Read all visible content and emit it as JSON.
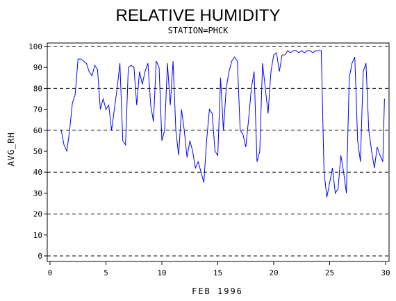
{
  "chart_data": {
    "type": "line",
    "title": "RELATIVE HUMIDITY",
    "subtitle": "STATION=PHCK",
    "x_label": "FEB 1996",
    "y_label": "AVG_RH",
    "x": [
      1,
      1.25,
      1.5,
      1.75,
      2,
      2.25,
      2.5,
      2.75,
      3,
      3.25,
      3.5,
      3.75,
      4,
      4.25,
      4.5,
      4.75,
      5,
      5.25,
      5.5,
      5.75,
      6,
      6.25,
      6.5,
      6.75,
      7,
      7.25,
      7.5,
      7.75,
      8,
      8.25,
      8.5,
      8.75,
      9,
      9.25,
      9.5,
      9.75,
      10,
      10.25,
      10.5,
      10.75,
      11,
      11.25,
      11.5,
      11.75,
      12,
      12.25,
      12.5,
      12.75,
      13,
      13.25,
      13.5,
      13.75,
      14,
      14.25,
      14.5,
      14.75,
      15,
      15.25,
      15.5,
      15.75,
      16,
      16.25,
      16.5,
      16.75,
      17,
      17.25,
      17.5,
      17.75,
      18,
      18.25,
      18.5,
      18.75,
      19,
      19.25,
      19.5,
      19.75,
      20,
      20.25,
      20.5,
      20.75,
      21,
      21.25,
      21.5,
      21.75,
      22,
      22.25,
      22.5,
      22.75,
      23,
      23.25,
      23.5,
      23.75,
      24,
      24.25,
      24.5,
      24.75,
      25,
      25.25,
      25.5,
      25.75,
      26,
      26.25,
      26.5,
      26.75,
      27,
      27.25,
      27.5,
      27.75,
      28,
      28.25,
      28.5,
      28.75,
      29,
      29.25,
      29.5,
      29.75,
      29.9
    ],
    "series": [
      {
        "name": "AVG_RH",
        "color": "#0000ff",
        "values": [
          60,
          53,
          50,
          60,
          73,
          77,
          94,
          94,
          93,
          92,
          88,
          86,
          91,
          89,
          70,
          75,
          70,
          72,
          60,
          70,
          80,
          92,
          55,
          53,
          90,
          91,
          90,
          72,
          88,
          82,
          88,
          92,
          72,
          64,
          93,
          90,
          55,
          60,
          92,
          72,
          93,
          60,
          48,
          70,
          60,
          47,
          55,
          50,
          42,
          45,
          40,
          35,
          55,
          70,
          68,
          50,
          48,
          85,
          60,
          80,
          88,
          93,
          95,
          93,
          60,
          58,
          52,
          65,
          80,
          88,
          45,
          50,
          92,
          80,
          68,
          88,
          96,
          97,
          88,
          96,
          96,
          98,
          97,
          98,
          98,
          97,
          98,
          97,
          98,
          98,
          97,
          98,
          98,
          98,
          40,
          28,
          35,
          42,
          30,
          32,
          48,
          40,
          30,
          85,
          92,
          95,
          55,
          45,
          88,
          92,
          60,
          50,
          42,
          52,
          48,
          45,
          75
        ]
      }
    ],
    "xlim": [
      0,
      30
    ],
    "xticks": [
      0,
      5,
      10,
      15,
      20,
      25,
      30
    ],
    "ylim": [
      0,
      100
    ],
    "yticks": [
      0,
      10,
      20,
      30,
      40,
      50,
      60,
      70,
      80,
      90,
      100
    ],
    "grid": true
  }
}
